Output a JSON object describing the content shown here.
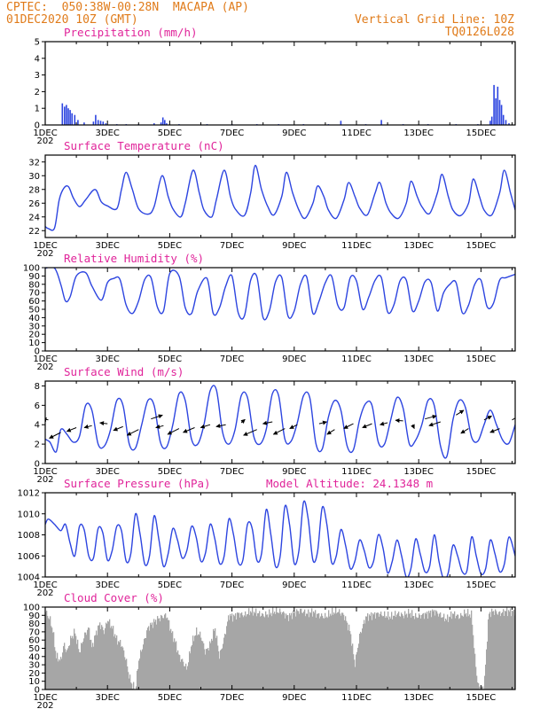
{
  "header": {
    "line1_left": "CPTEC:  050:38W-00:28N  MACAPA (AP)",
    "line2_left": "01DEC2020 10Z (GMT)",
    "line1_right": "Vertical Grid Line: 10Z",
    "line2_right": "TQ0126L028"
  },
  "colors": {
    "header": "#e07b1a",
    "title": "#e0249a",
    "line": "#2d45e0",
    "cloud": "#a6a6a6",
    "wind_arrow": "#000000"
  },
  "x_axis": {
    "start_day": 1,
    "end_day": 16.1,
    "tick_days": [
      1,
      3,
      5,
      7,
      9,
      11,
      13,
      15
    ],
    "tick_labels": [
      "1DEC",
      "3DEC",
      "5DEC",
      "7DEC",
      "9DEC",
      "11DEC",
      "13DEC",
      "15DEC"
    ],
    "year_stub": "202"
  },
  "chart_data": [
    {
      "type": "bar",
      "title": "Precipitation (mm/h)",
      "ylim": [
        0,
        5
      ],
      "yticks": [
        0,
        1,
        2,
        3,
        4,
        5
      ],
      "bars": [
        [
          1.55,
          1.3
        ],
        [
          1.62,
          1.1
        ],
        [
          1.68,
          1.2
        ],
        [
          1.74,
          1.0
        ],
        [
          1.8,
          0.9
        ],
        [
          1.86,
          0.7
        ],
        [
          1.95,
          0.6
        ],
        [
          2.05,
          0.3
        ],
        [
          2.25,
          0.15
        ],
        [
          2.55,
          0.2
        ],
        [
          2.62,
          0.6
        ],
        [
          2.7,
          0.3
        ],
        [
          2.78,
          0.25
        ],
        [
          2.86,
          0.2
        ],
        [
          2.95,
          0.1
        ],
        [
          3.3,
          0.05
        ],
        [
          3.6,
          0.05
        ],
        [
          4.0,
          0.05
        ],
        [
          4.5,
          0.1
        ],
        [
          4.72,
          0.15
        ],
        [
          4.78,
          0.45
        ],
        [
          4.84,
          0.3
        ],
        [
          4.9,
          0.1
        ],
        [
          5.3,
          0.05
        ],
        [
          6.2,
          0.05
        ],
        [
          7.0,
          0.05
        ],
        [
          7.8,
          0.05
        ],
        [
          8.5,
          0.05
        ],
        [
          9.3,
          0.05
        ],
        [
          10.1,
          0.05
        ],
        [
          10.5,
          0.25
        ],
        [
          11.3,
          0.05
        ],
        [
          11.8,
          0.3
        ],
        [
          12.5,
          0.05
        ],
        [
          13.3,
          0.05
        ],
        [
          14.2,
          0.05
        ],
        [
          14.9,
          0.05
        ],
        [
          15.3,
          0.25
        ],
        [
          15.35,
          0.5
        ],
        [
          15.42,
          2.4
        ],
        [
          15.48,
          1.6
        ],
        [
          15.54,
          2.3
        ],
        [
          15.6,
          1.5
        ],
        [
          15.66,
          1.2
        ],
        [
          15.72,
          0.6
        ],
        [
          15.8,
          0.3
        ],
        [
          15.9,
          0.1
        ]
      ]
    },
    {
      "type": "line",
      "title": "Surface Temperature (nC)",
      "ylim": [
        21,
        33
      ],
      "yticks": [
        22,
        24,
        26,
        28,
        30,
        32
      ],
      "x": [
        1.0,
        1.1,
        1.3,
        1.45,
        1.6,
        1.75,
        1.9,
        2.1,
        2.3,
        2.6,
        2.8,
        3.0,
        3.3,
        3.45,
        3.6,
        3.8,
        4.0,
        4.3,
        4.5,
        4.75,
        4.95,
        5.1,
        5.35,
        5.5,
        5.75,
        5.95,
        6.1,
        6.35,
        6.5,
        6.75,
        6.95,
        7.1,
        7.4,
        7.6,
        7.75,
        7.95,
        8.15,
        8.35,
        8.6,
        8.75,
        8.95,
        9.15,
        9.35,
        9.6,
        9.75,
        9.95,
        10.1,
        10.35,
        10.6,
        10.75,
        10.95,
        11.1,
        11.35,
        11.6,
        11.75,
        11.95,
        12.1,
        12.35,
        12.6,
        12.75,
        12.95,
        13.1,
        13.35,
        13.6,
        13.75,
        13.95,
        14.1,
        14.35,
        14.6,
        14.75,
        14.95,
        15.1,
        15.35,
        15.6,
        15.75,
        15.95,
        16.1
      ],
      "values": [
        22.6,
        22.3,
        22.4,
        26.5,
        28.2,
        28.4,
        26.8,
        25.5,
        26.5,
        28.0,
        26.2,
        25.6,
        25.2,
        28.0,
        30.5,
        28.0,
        25.2,
        24.4,
        25.5,
        30.0,
        27.0,
        25.2,
        24.0,
        26.0,
        30.8,
        27.5,
        25.0,
        24.0,
        26.5,
        30.8,
        27.0,
        25.2,
        24.2,
        27.5,
        31.5,
        28.0,
        25.5,
        24.3,
        27.0,
        30.5,
        27.5,
        25.0,
        23.8,
        26.0,
        28.5,
        27.0,
        25.0,
        23.8,
        26.5,
        29.0,
        27.0,
        25.3,
        24.3,
        27.5,
        29.0,
        26.0,
        24.6,
        23.8,
        26.0,
        29.2,
        27.0,
        25.5,
        24.5,
        27.5,
        30.2,
        27.0,
        25.0,
        24.2,
        26.0,
        29.5,
        27.0,
        25.0,
        24.3,
        27.5,
        30.8,
        27.5,
        25.0
      ]
    },
    {
      "type": "line",
      "title": "Relative Humidity (%)",
      "ylim": [
        0,
        100
      ],
      "yticks": [
        0,
        10,
        20,
        30,
        40,
        50,
        60,
        70,
        80,
        90,
        100
      ],
      "x": [
        1.0,
        1.3,
        1.5,
        1.65,
        1.8,
        2.0,
        2.3,
        2.5,
        2.8,
        3.0,
        3.2,
        3.4,
        3.6,
        3.8,
        4.0,
        4.2,
        4.4,
        4.6,
        4.8,
        5.0,
        5.3,
        5.5,
        5.7,
        5.9,
        6.2,
        6.4,
        6.6,
        6.8,
        7.0,
        7.2,
        7.4,
        7.6,
        7.8,
        8.0,
        8.2,
        8.4,
        8.6,
        8.8,
        9.0,
        9.2,
        9.4,
        9.6,
        9.8,
        10.0,
        10.2,
        10.4,
        10.6,
        10.8,
        11.0,
        11.2,
        11.4,
        11.6,
        11.8,
        12.0,
        12.2,
        12.4,
        12.6,
        12.8,
        13.0,
        13.2,
        13.4,
        13.6,
        13.8,
        14.0,
        14.2,
        14.4,
        14.6,
        14.8,
        15.0,
        15.2,
        15.4,
        15.6,
        15.8,
        16.1
      ],
      "values": [
        99.5,
        99.5,
        80.0,
        60.0,
        65.0,
        90.0,
        94.0,
        78.0,
        61.0,
        82.0,
        87.0,
        86.0,
        55.0,
        45.0,
        60.0,
        86.0,
        88.0,
        53.0,
        48.0,
        93.0,
        90.0,
        52.0,
        45.0,
        72.0,
        87.0,
        45.0,
        52.0,
        78.0,
        90.0,
        46.0,
        42.0,
        85.0,
        89.0,
        40.0,
        48.0,
        83.0,
        88.0,
        42.0,
        48.0,
        80.0,
        89.0,
        45.0,
        60.0,
        82.0,
        90.0,
        55.0,
        52.0,
        88.0,
        84.0,
        50.0,
        65.0,
        85.0,
        88.0,
        47.0,
        55.0,
        84.0,
        85.0,
        48.0,
        60.0,
        83.0,
        82.0,
        48.0,
        70.0,
        80.0,
        82.0,
        46.0,
        55.0,
        80.0,
        85.0,
        53.0,
        57.0,
        85.0,
        88.0,
        92.0
      ]
    },
    {
      "type": "line",
      "title": "Surface Wind (m/s)",
      "ylim": [
        0,
        8.5
      ],
      "yticks": [
        0,
        2,
        4,
        6,
        8
      ],
      "x": [
        1.0,
        1.15,
        1.35,
        1.5,
        1.7,
        1.9,
        2.1,
        2.3,
        2.5,
        2.7,
        2.9,
        3.1,
        3.3,
        3.5,
        3.7,
        3.9,
        4.1,
        4.3,
        4.5,
        4.7,
        4.9,
        5.1,
        5.3,
        5.5,
        5.7,
        5.9,
        6.1,
        6.3,
        6.5,
        6.7,
        6.9,
        7.1,
        7.3,
        7.5,
        7.7,
        7.9,
        8.1,
        8.3,
        8.5,
        8.7,
        8.9,
        9.1,
        9.3,
        9.5,
        9.7,
        9.9,
        10.1,
        10.3,
        10.5,
        10.7,
        10.9,
        11.1,
        11.3,
        11.5,
        11.7,
        11.9,
        12.1,
        12.3,
        12.5,
        12.7,
        12.9,
        13.1,
        13.3,
        13.5,
        13.7,
        13.9,
        14.1,
        14.3,
        14.5,
        14.7,
        14.9,
        15.1,
        15.3,
        15.5,
        15.7,
        15.9,
        16.1
      ],
      "values": [
        2.5,
        2.2,
        1.2,
        3.5,
        3.0,
        2.2,
        2.8,
        6.0,
        5.5,
        2.0,
        1.8,
        3.5,
        6.5,
        6.0,
        2.0,
        1.6,
        4.0,
        6.5,
        6.0,
        2.2,
        1.7,
        4.0,
        7.2,
        6.5,
        2.5,
        2.0,
        4.0,
        7.5,
        7.6,
        3.2,
        2.0,
        3.5,
        7.0,
        6.8,
        2.8,
        2.0,
        3.5,
        7.2,
        7.0,
        2.5,
        2.3,
        4.2,
        7.0,
        6.8,
        2.0,
        1.5,
        4.8,
        6.5,
        5.5,
        1.8,
        1.4,
        4.5,
        6.2,
        6.0,
        2.2,
        2.0,
        4.5,
        6.8,
        5.7,
        2.0,
        2.4,
        4.0,
        6.5,
        6.0,
        1.8,
        0.7,
        4.5,
        6.5,
        5.8,
        2.7,
        2.3,
        4.0,
        5.5,
        4.0,
        2.4,
        2.1,
        4.0
      ],
      "arrows": [
        [
          1.1,
          4.5,
          -3,
          0.6
        ],
        [
          1.5,
          3.2,
          -6,
          -3
        ],
        [
          2.0,
          3.7,
          -5,
          -2
        ],
        [
          2.5,
          3.9,
          -4,
          -1
        ],
        [
          3.0,
          4.1,
          -4,
          0.5
        ],
        [
          3.5,
          3.8,
          -5,
          -2
        ],
        [
          4.0,
          3.5,
          -6,
          -3
        ],
        [
          4.4,
          4.6,
          6,
          2
        ],
        [
          4.8,
          3.9,
          -4,
          -1
        ],
        [
          5.3,
          3.6,
          -6,
          -3
        ],
        [
          5.8,
          3.7,
          -6,
          -2.5
        ],
        [
          6.3,
          4.0,
          -5,
          -1.5
        ],
        [
          6.8,
          4.0,
          -5,
          -1
        ],
        [
          7.3,
          4.2,
          2,
          1.8
        ],
        [
          7.8,
          3.5,
          -7,
          -3
        ],
        [
          8.3,
          4.3,
          -5,
          -1
        ],
        [
          8.7,
          3.6,
          -6,
          -3
        ],
        [
          9.1,
          4.0,
          -4,
          -2
        ],
        [
          9.8,
          4.1,
          4,
          1
        ],
        [
          10.3,
          3.5,
          -4,
          -2.5
        ],
        [
          10.9,
          4.1,
          -5,
          -2.5
        ],
        [
          11.5,
          4.1,
          -5,
          -2
        ],
        [
          12.0,
          4.2,
          -4,
          -1
        ],
        [
          12.5,
          4.4,
          -4,
          0.3
        ],
        [
          12.8,
          4.0,
          1,
          -2
        ],
        [
          13.2,
          4.6,
          6,
          1.6
        ],
        [
          13.7,
          4.3,
          -6,
          -2
        ],
        [
          14.2,
          5.0,
          4,
          2.5
        ],
        [
          14.6,
          3.6,
          -4,
          -2.5
        ],
        [
          15.1,
          4.5,
          4,
          2
        ],
        [
          15.6,
          3.6,
          -5,
          -2
        ],
        [
          16.0,
          4.5,
          4,
          2.2
        ]
      ]
    },
    {
      "type": "line",
      "title": "Surface Pressure (hPa)",
      "annotation": "Model Altitude: 24.1348 m",
      "ylim": [
        1004,
        1012
      ],
      "yticks": [
        1004,
        1006,
        1008,
        1010,
        1012
      ],
      "x": [
        1.0,
        1.1,
        1.3,
        1.5,
        1.65,
        1.8,
        1.95,
        2.1,
        2.25,
        2.4,
        2.55,
        2.7,
        2.85,
        3.0,
        3.15,
        3.3,
        3.45,
        3.6,
        3.75,
        3.9,
        4.05,
        4.2,
        4.35,
        4.5,
        4.65,
        4.8,
        4.95,
        5.1,
        5.25,
        5.4,
        5.55,
        5.7,
        5.85,
        6.0,
        6.15,
        6.3,
        6.45,
        6.6,
        6.75,
        6.9,
        7.05,
        7.2,
        7.35,
        7.5,
        7.65,
        7.8,
        7.95,
        8.1,
        8.25,
        8.4,
        8.55,
        8.7,
        8.85,
        9.0,
        9.15,
        9.3,
        9.45,
        9.6,
        9.75,
        9.9,
        10.05,
        10.2,
        10.35,
        10.5,
        10.65,
        10.8,
        10.95,
        11.1,
        11.25,
        11.4,
        11.55,
        11.7,
        11.85,
        12.0,
        12.15,
        12.3,
        12.45,
        12.6,
        12.75,
        12.9,
        13.05,
        13.2,
        13.35,
        13.5,
        13.65,
        13.8,
        13.95,
        14.1,
        14.25,
        14.4,
        14.55,
        14.7,
        14.85,
        15.0,
        15.15,
        15.3,
        15.45,
        15.6,
        15.75,
        15.9,
        16.1
      ],
      "values": [
        1009.0,
        1009.5,
        1009.0,
        1008.4,
        1009.0,
        1007.2,
        1006.0,
        1008.8,
        1008.5,
        1006.0,
        1005.8,
        1008.6,
        1008.2,
        1005.6,
        1006.5,
        1008.8,
        1008.4,
        1005.5,
        1006.2,
        1010.0,
        1008.0,
        1005.2,
        1006.0,
        1009.8,
        1007.6,
        1005.0,
        1006.2,
        1008.6,
        1007.5,
        1005.8,
        1006.5,
        1008.8,
        1007.8,
        1005.5,
        1006.3,
        1009.0,
        1007.6,
        1005.3,
        1006.0,
        1009.5,
        1008.0,
        1005.4,
        1005.6,
        1009.0,
        1008.6,
        1005.6,
        1006.2,
        1010.4,
        1008.0,
        1005.0,
        1006.0,
        1010.7,
        1009.0,
        1005.3,
        1006.5,
        1011.1,
        1009.5,
        1005.6,
        1006.4,
        1010.6,
        1009.0,
        1005.4,
        1006.0,
        1008.5,
        1007.0,
        1004.8,
        1005.5,
        1007.5,
        1006.5,
        1004.9,
        1005.5,
        1008.0,
        1006.8,
        1004.4,
        1005.5,
        1007.5,
        1006.0,
        1004.0,
        1004.8,
        1007.6,
        1006.2,
        1004.5,
        1005.0,
        1008.0,
        1005.5,
        1003.8,
        1004.4,
        1007.0,
        1006.0,
        1004.5,
        1004.6,
        1007.8,
        1006.0,
        1004.3,
        1004.8,
        1007.5,
        1006.2,
        1004.5,
        1005.2,
        1007.8,
        1006.0
      ]
    },
    {
      "type": "area",
      "title": "Cloud Cover (%)",
      "ylim": [
        0,
        100
      ],
      "yticks": [
        0,
        10,
        20,
        30,
        40,
        50,
        60,
        70,
        80,
        90,
        100
      ],
      "x": [
        1.0,
        1.15,
        1.25,
        1.35,
        1.5,
        1.6,
        1.7,
        1.8,
        1.95,
        2.1,
        2.25,
        2.4,
        2.5,
        2.6,
        2.75,
        2.9,
        3.0,
        3.15,
        3.3,
        3.45,
        3.6,
        3.7,
        3.8,
        3.9,
        4.0,
        4.15,
        4.3,
        4.45,
        4.6,
        4.75,
        4.9,
        5.05,
        5.2,
        5.3,
        5.4,
        5.55,
        5.7,
        5.85,
        6.0,
        6.15,
        6.3,
        6.45,
        6.6,
        6.75,
        6.9,
        7.05,
        7.2,
        7.4,
        7.6,
        7.8,
        8.0,
        8.2,
        8.4,
        8.6,
        8.8,
        9.0,
        9.2,
        9.4,
        9.6,
        9.8,
        10.0,
        10.2,
        10.4,
        10.6,
        10.8,
        10.95,
        11.1,
        11.3,
        11.5,
        11.7,
        11.9,
        12.1,
        12.3,
        12.5,
        12.7,
        12.9,
        13.1,
        13.3,
        13.5,
        13.7,
        13.9,
        14.1,
        14.3,
        14.5,
        14.7,
        14.8,
        14.9,
        15.0,
        15.1,
        15.25,
        15.4,
        15.6,
        15.8,
        16.1
      ],
      "values": [
        95.0,
        85.0,
        70.0,
        40.0,
        35.0,
        55.0,
        45.0,
        60.0,
        70.0,
        45.0,
        65.0,
        75.0,
        50.0,
        65.0,
        80.0,
        70.0,
        85.0,
        75.0,
        60.0,
        55.0,
        35.0,
        15.0,
        5.0,
        0.0,
        35.0,
        55.0,
        75.0,
        80.0,
        85.0,
        88.0,
        90.0,
        70.0,
        55.0,
        40.0,
        35.0,
        25.0,
        55.0,
        70.0,
        65.0,
        45.0,
        55.0,
        75.0,
        40.0,
        62.0,
        90.0,
        88.0,
        92.0,
        90.0,
        95.0,
        93.0,
        90.0,
        92.0,
        95.0,
        94.0,
        88.0,
        93.0,
        96.0,
        92.0,
        94.0,
        90.0,
        88.0,
        93.0,
        95.0,
        90.0,
        70.0,
        30.0,
        65.0,
        88.0,
        90.0,
        92.0,
        90.0,
        88.0,
        92.0,
        90.0,
        93.0,
        88.0,
        90.0,
        92.0,
        95.0,
        90.0,
        85.0,
        92.0,
        88.0,
        93.0,
        90.0,
        40.0,
        5.0,
        2.0,
        3.0,
        92.0,
        95.0,
        92.0,
        95.0,
        94.0
      ]
    }
  ]
}
